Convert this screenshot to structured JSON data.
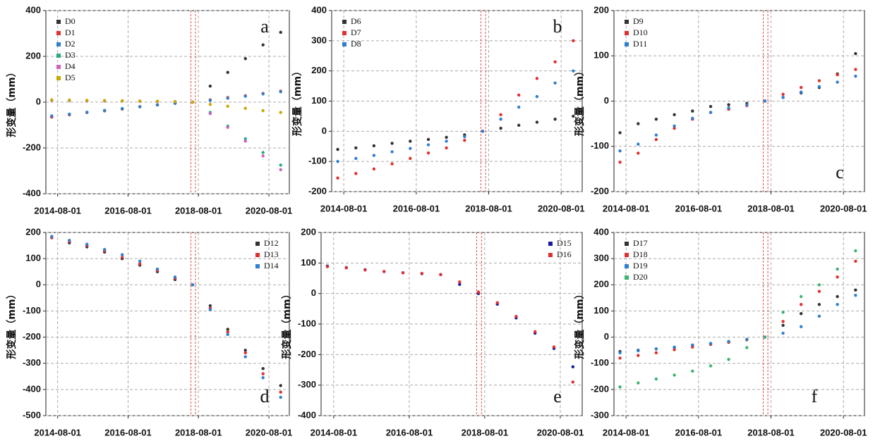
{
  "chart_data": [
    {
      "type": "scatter",
      "annotation": "a",
      "annotation_corner": "upper right",
      "ylabel": "形变量（mm）",
      "legend": "upper left",
      "grid": true,
      "x": [
        "2014-06-01",
        "2014-12-01",
        "2015-06-01",
        "2015-12-01",
        "2016-06-01",
        "2016-12-01",
        "2017-06-01",
        "2017-12-01",
        "2018-06-01",
        "2018-12-01",
        "2019-06-01",
        "2019-12-01",
        "2020-06-01",
        "2020-12-01"
      ],
      "xlim": [
        "2014-04-01",
        "2021-03-01"
      ],
      "xticks": [
        "2014-08-01",
        "2016-08-01",
        "2018-08-01",
        "2020-08-01"
      ],
      "ylim": [
        -400,
        400
      ],
      "yticks": [
        -400,
        -200,
        0,
        200,
        400
      ],
      "vlines": [
        "2018-05-15",
        "2018-07-01"
      ],
      "vline_color": "#d9534f",
      "series": [
        {
          "name": "D0",
          "color": "#333333",
          "values": [
            -65,
            -55,
            -45,
            -38,
            -30,
            -20,
            -12,
            -5,
            0,
            70,
            130,
            190,
            250,
            305
          ]
        },
        {
          "name": "D1",
          "color": "#e03030",
          "values": [
            -65,
            -55,
            -45,
            -38,
            -30,
            -20,
            -12,
            -5,
            0,
            10,
            20,
            28,
            38,
            48
          ]
        },
        {
          "name": "D2",
          "color": "#2f7fd0",
          "values": [
            -60,
            -52,
            -44,
            -36,
            -28,
            -20,
            -12,
            -5,
            0,
            8,
            17,
            26,
            36,
            45
          ]
        },
        {
          "name": "D3",
          "color": "#2aaa80",
          "values": [
            8,
            7,
            6,
            5,
            5,
            4,
            3,
            2,
            0,
            -45,
            -105,
            -160,
            -220,
            -275
          ]
        },
        {
          "name": "D4",
          "color": "#d060c0",
          "values": [
            8,
            7,
            6,
            5,
            5,
            4,
            3,
            2,
            0,
            -50,
            -110,
            -170,
            -235,
            -295
          ]
        },
        {
          "name": "D5",
          "color": "#c8a800",
          "values": [
            10,
            9,
            8,
            7,
            6,
            5,
            4,
            2,
            0,
            -10,
            -18,
            -27,
            -37,
            -45
          ]
        }
      ]
    },
    {
      "type": "scatter",
      "annotation": "b",
      "annotation_corner": "upper right",
      "ylabel": "形变量（mm）",
      "legend": "upper left",
      "grid": true,
      "x": [
        "2014-06-01",
        "2014-12-01",
        "2015-06-01",
        "2015-12-01",
        "2016-06-01",
        "2016-12-01",
        "2017-06-01",
        "2017-12-01",
        "2018-06-01",
        "2018-12-01",
        "2019-06-01",
        "2019-12-01",
        "2020-06-01",
        "2020-12-01"
      ],
      "xlim": [
        "2014-04-01",
        "2021-03-01"
      ],
      "xticks": [
        "2014-08-01",
        "2016-08-01",
        "2018-08-01",
        "2020-08-01"
      ],
      "ylim": [
        -200,
        400
      ],
      "yticks": [
        -200,
        -100,
        0,
        100,
        200,
        300,
        400
      ],
      "vlines": [
        "2018-05-15",
        "2018-07-01"
      ],
      "vline_color": "#d9534f",
      "series": [
        {
          "name": "D6",
          "color": "#333333",
          "values": [
            -60,
            -55,
            -48,
            -40,
            -33,
            -27,
            -20,
            -12,
            0,
            10,
            20,
            30,
            40,
            50
          ]
        },
        {
          "name": "D7",
          "color": "#e03030",
          "values": [
            -155,
            -140,
            -125,
            -108,
            -90,
            -72,
            -55,
            -30,
            0,
            55,
            120,
            175,
            230,
            300
          ]
        },
        {
          "name": "D8",
          "color": "#2f7fd0",
          "values": [
            -100,
            -90,
            -80,
            -68,
            -57,
            -45,
            -33,
            -18,
            0,
            40,
            80,
            115,
            160,
            200
          ]
        }
      ]
    },
    {
      "type": "scatter",
      "annotation": "c",
      "annotation_corner": "lower right",
      "ylabel": "形变量（mm）",
      "legend": "upper left",
      "grid": true,
      "x": [
        "2014-06-01",
        "2014-12-01",
        "2015-06-01",
        "2015-12-01",
        "2016-06-01",
        "2016-12-01",
        "2017-06-01",
        "2017-12-01",
        "2018-06-01",
        "2018-12-01",
        "2019-06-01",
        "2019-12-01",
        "2020-06-01",
        "2020-12-01"
      ],
      "xlim": [
        "2014-04-01",
        "2021-03-01"
      ],
      "xticks": [
        "2014-08-01",
        "2016-08-01",
        "2018-08-01",
        "2020-08-01"
      ],
      "ylim": [
        -200,
        200
      ],
      "yticks": [
        -200,
        -100,
        0,
        100,
        200
      ],
      "vlines": [
        "2018-05-15",
        "2018-07-01"
      ],
      "vline_color": "#d9534f",
      "series": [
        {
          "name": "D9",
          "color": "#333333",
          "values": [
            -70,
            -50,
            -40,
            -30,
            -22,
            -12,
            -8,
            -5,
            0,
            8,
            18,
            30,
            60,
            105
          ]
        },
        {
          "name": "D10",
          "color": "#e03030",
          "values": [
            -135,
            -115,
            -85,
            -60,
            -40,
            -25,
            -18,
            -10,
            0,
            15,
            30,
            45,
            58,
            70
          ]
        },
        {
          "name": "D11",
          "color": "#2f7fd0",
          "values": [
            -110,
            -95,
            -75,
            -55,
            -38,
            -25,
            -15,
            -8,
            0,
            8,
            20,
            32,
            42,
            55
          ]
        }
      ]
    },
    {
      "type": "scatter",
      "annotation": "d",
      "annotation_corner": "lower right",
      "ylabel": "形变量（mm）",
      "legend": "upper right",
      "grid": true,
      "x": [
        "2014-06-01",
        "2014-12-01",
        "2015-06-01",
        "2015-12-01",
        "2016-06-01",
        "2016-12-01",
        "2017-06-01",
        "2017-12-01",
        "2018-06-01",
        "2018-12-01",
        "2019-06-01",
        "2019-12-01",
        "2020-06-01",
        "2020-12-01"
      ],
      "xlim": [
        "2014-04-01",
        "2021-03-01"
      ],
      "xticks": [
        "2014-08-01",
        "2016-08-01",
        "2018-08-01",
        "2020-08-01"
      ],
      "ylim": [
        -500,
        200
      ],
      "yticks": [
        -500,
        -400,
        -300,
        -200,
        -100,
        0,
        100,
        200
      ],
      "vlines": [
        "2018-05-15",
        "2018-07-01"
      ],
      "vline_color": "#d9534f",
      "series": [
        {
          "name": "D12",
          "color": "#333333",
          "values": [
            180,
            160,
            145,
            125,
            100,
            75,
            50,
            20,
            0,
            -80,
            -170,
            -250,
            -320,
            -385
          ]
        },
        {
          "name": "D13",
          "color": "#e03030",
          "values": [
            180,
            165,
            150,
            130,
            105,
            80,
            55,
            25,
            0,
            -90,
            -180,
            -260,
            -340,
            -410
          ]
        },
        {
          "name": "D14",
          "color": "#2f7fd0",
          "values": [
            185,
            170,
            155,
            135,
            115,
            90,
            60,
            30,
            0,
            -95,
            -190,
            -275,
            -355,
            -430
          ]
        }
      ]
    },
    {
      "type": "scatter",
      "annotation": "e",
      "annotation_corner": "lower right",
      "ylabel": "形变量（mm）",
      "legend": "upper right",
      "grid": true,
      "x": [
        "2014-06-01",
        "2014-12-01",
        "2015-06-01",
        "2015-12-01",
        "2016-06-01",
        "2016-12-01",
        "2017-06-01",
        "2017-12-01",
        "2018-06-01",
        "2018-12-01",
        "2019-06-01",
        "2019-12-01",
        "2020-06-01",
        "2020-12-01"
      ],
      "xlim": [
        "2014-04-01",
        "2021-03-01"
      ],
      "xticks": [
        "2014-08-01",
        "2016-08-01",
        "2018-08-01",
        "2020-08-01"
      ],
      "ylim": [
        -400,
        200
      ],
      "yticks": [
        -400,
        -300,
        -200,
        -100,
        0,
        100,
        200
      ],
      "vlines": [
        "2018-05-15",
        "2018-07-01"
      ],
      "vline_color": "#d9534f",
      "series": [
        {
          "name": "D15",
          "color": "#1a1aa0",
          "values": [
            90,
            85,
            78,
            72,
            68,
            65,
            62,
            30,
            0,
            -35,
            -80,
            -130,
            -180,
            -240
          ]
        },
        {
          "name": "D16",
          "color": "#e03030",
          "values": [
            88,
            84,
            77,
            72,
            68,
            66,
            62,
            38,
            5,
            -30,
            -75,
            -125,
            -175,
            -290
          ]
        }
      ]
    },
    {
      "type": "scatter",
      "annotation": "f",
      "annotation_corner": "lower center",
      "ylabel": "形变量（mm）",
      "legend": "upper left",
      "grid": true,
      "x": [
        "2014-06-01",
        "2014-12-01",
        "2015-06-01",
        "2015-12-01",
        "2016-06-01",
        "2016-12-01",
        "2017-06-01",
        "2017-12-01",
        "2018-06-01",
        "2018-12-01",
        "2019-06-01",
        "2019-12-01",
        "2020-06-01",
        "2020-12-01"
      ],
      "xlim": [
        "2014-04-01",
        "2021-03-01"
      ],
      "xticks": [
        "2014-08-01",
        "2016-08-01",
        "2018-08-01",
        "2020-08-01"
      ],
      "ylim": [
        -300,
        400
      ],
      "yticks": [
        -300,
        -200,
        -100,
        0,
        100,
        200,
        300,
        400
      ],
      "vlines": [
        "2018-05-15",
        "2018-07-01"
      ],
      "vline_color": "#d9534f",
      "series": [
        {
          "name": "D17",
          "color": "#333333",
          "values": [
            -55,
            -50,
            -45,
            -40,
            -32,
            -25,
            -18,
            -10,
            0,
            45,
            90,
            125,
            155,
            180
          ]
        },
        {
          "name": "D18",
          "color": "#e03030",
          "values": [
            -80,
            -70,
            -60,
            -48,
            -38,
            -28,
            -20,
            -10,
            0,
            60,
            125,
            175,
            230,
            290
          ]
        },
        {
          "name": "D19",
          "color": "#2f7fd0",
          "values": [
            -60,
            -52,
            -45,
            -38,
            -30,
            -24,
            -16,
            -8,
            0,
            15,
            40,
            80,
            125,
            160
          ]
        },
        {
          "name": "D20",
          "color": "#3cb371",
          "values": [
            -190,
            -175,
            -160,
            -145,
            -130,
            -110,
            -85,
            -40,
            0,
            95,
            155,
            200,
            260,
            330
          ]
        }
      ]
    }
  ]
}
